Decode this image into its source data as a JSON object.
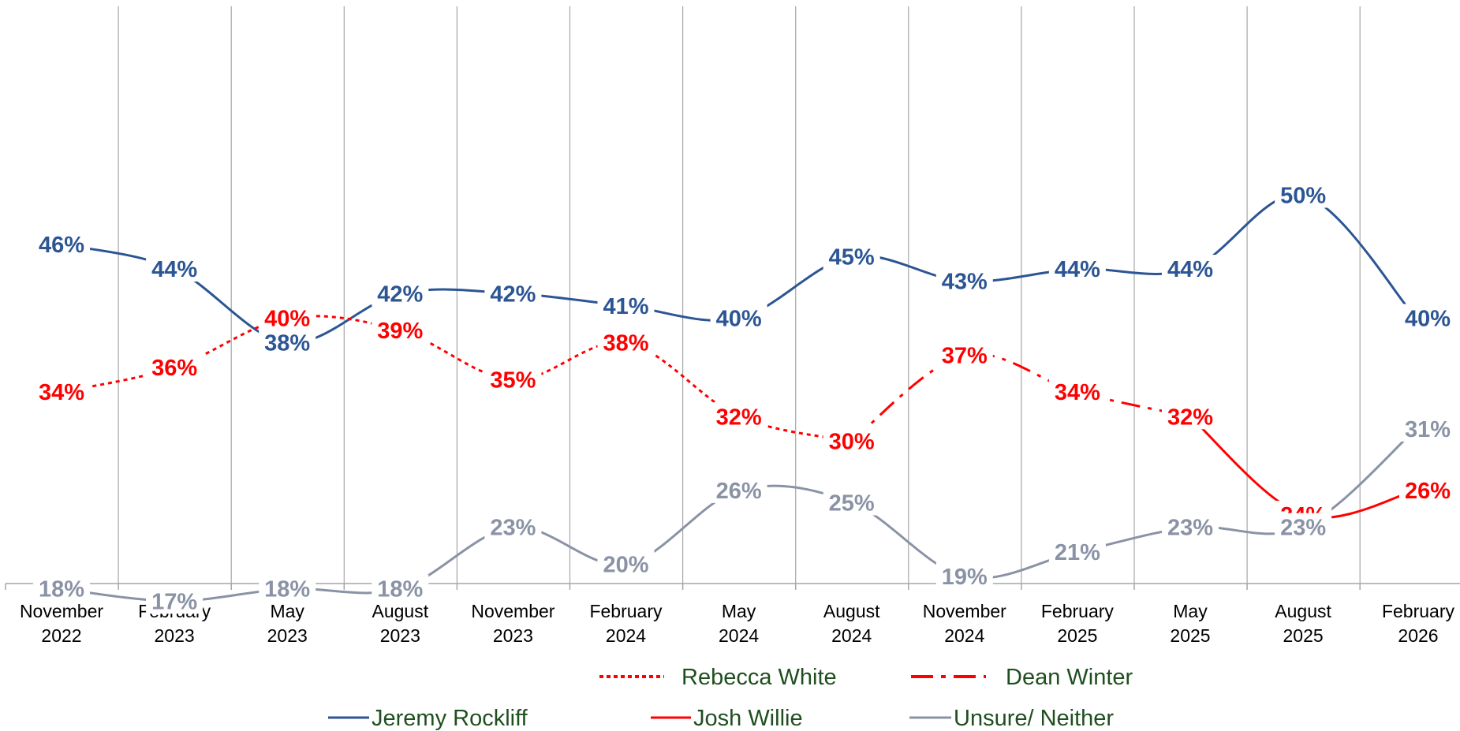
{
  "chart_data": {
    "type": "line",
    "categories": [
      [
        "November",
        "2022"
      ],
      [
        "February",
        "2023"
      ],
      [
        "May",
        "2023"
      ],
      [
        "August",
        "2023"
      ],
      [
        "November",
        "2023"
      ],
      [
        "February",
        "2024"
      ],
      [
        "May",
        "2024"
      ],
      [
        "August",
        "2024"
      ],
      [
        "November",
        "2024"
      ],
      [
        "February",
        "2025"
      ],
      [
        "May",
        "2025"
      ],
      [
        "August",
        "2025"
      ],
      [
        "February",
        "2026"
      ]
    ],
    "ylim": [
      0,
      100
    ],
    "grid": "vertical",
    "legend_position": "bottom",
    "series": [
      {
        "name": "Jeremy Rockliff",
        "color": "#2c5594",
        "style": "solid",
        "values": [
          46,
          44,
          38,
          42,
          42,
          41,
          40,
          45,
          43,
          44,
          44,
          50,
          40
        ],
        "labels": [
          "46%",
          "44%",
          "38%",
          "42%",
          "42%",
          "41%",
          "40%",
          "45%",
          "43%",
          "44%",
          "44%",
          "50%",
          "40%"
        ]
      },
      {
        "name": "Rebecca White",
        "color": "#ff0000",
        "style": "dotted",
        "values": [
          34,
          36,
          40,
          39,
          35,
          38,
          32,
          30,
          null,
          null,
          null,
          null,
          null
        ],
        "labels": [
          "34%",
          "36%",
          "40%",
          "39%",
          "35%",
          "38%",
          "32%",
          "30%",
          "",
          "",
          "",
          "",
          ""
        ]
      },
      {
        "name": "Dean Winter",
        "color": "#ff0000",
        "style": "dashdot",
        "values": [
          null,
          null,
          null,
          null,
          null,
          null,
          null,
          30,
          37,
          34,
          32,
          null,
          null
        ],
        "labels": [
          "",
          "",
          "",
          "",
          "",
          "",
          "",
          "",
          "37%",
          "34%",
          "32%",
          "",
          ""
        ]
      },
      {
        "name": "Josh Willie",
        "color": "#ff0000",
        "style": "solid",
        "values": [
          null,
          null,
          null,
          null,
          null,
          null,
          null,
          null,
          null,
          null,
          32,
          24,
          26
        ],
        "labels": [
          "",
          "",
          "",
          "",
          "",
          "",
          "",
          "",
          "",
          "",
          "",
          "24%",
          "26%"
        ]
      },
      {
        "name": "Unsure/ Neither",
        "color": "#8a93a5",
        "style": "solid",
        "values": [
          18,
          17,
          18,
          18,
          23,
          20,
          26,
          25,
          19,
          21,
          23,
          23,
          31
        ],
        "labels": [
          "18%",
          "17%",
          "18%",
          "18%",
          "23%",
          "20%",
          "26%",
          "25%",
          "19%",
          "21%",
          "23%",
          "23%",
          "31%"
        ]
      }
    ]
  }
}
